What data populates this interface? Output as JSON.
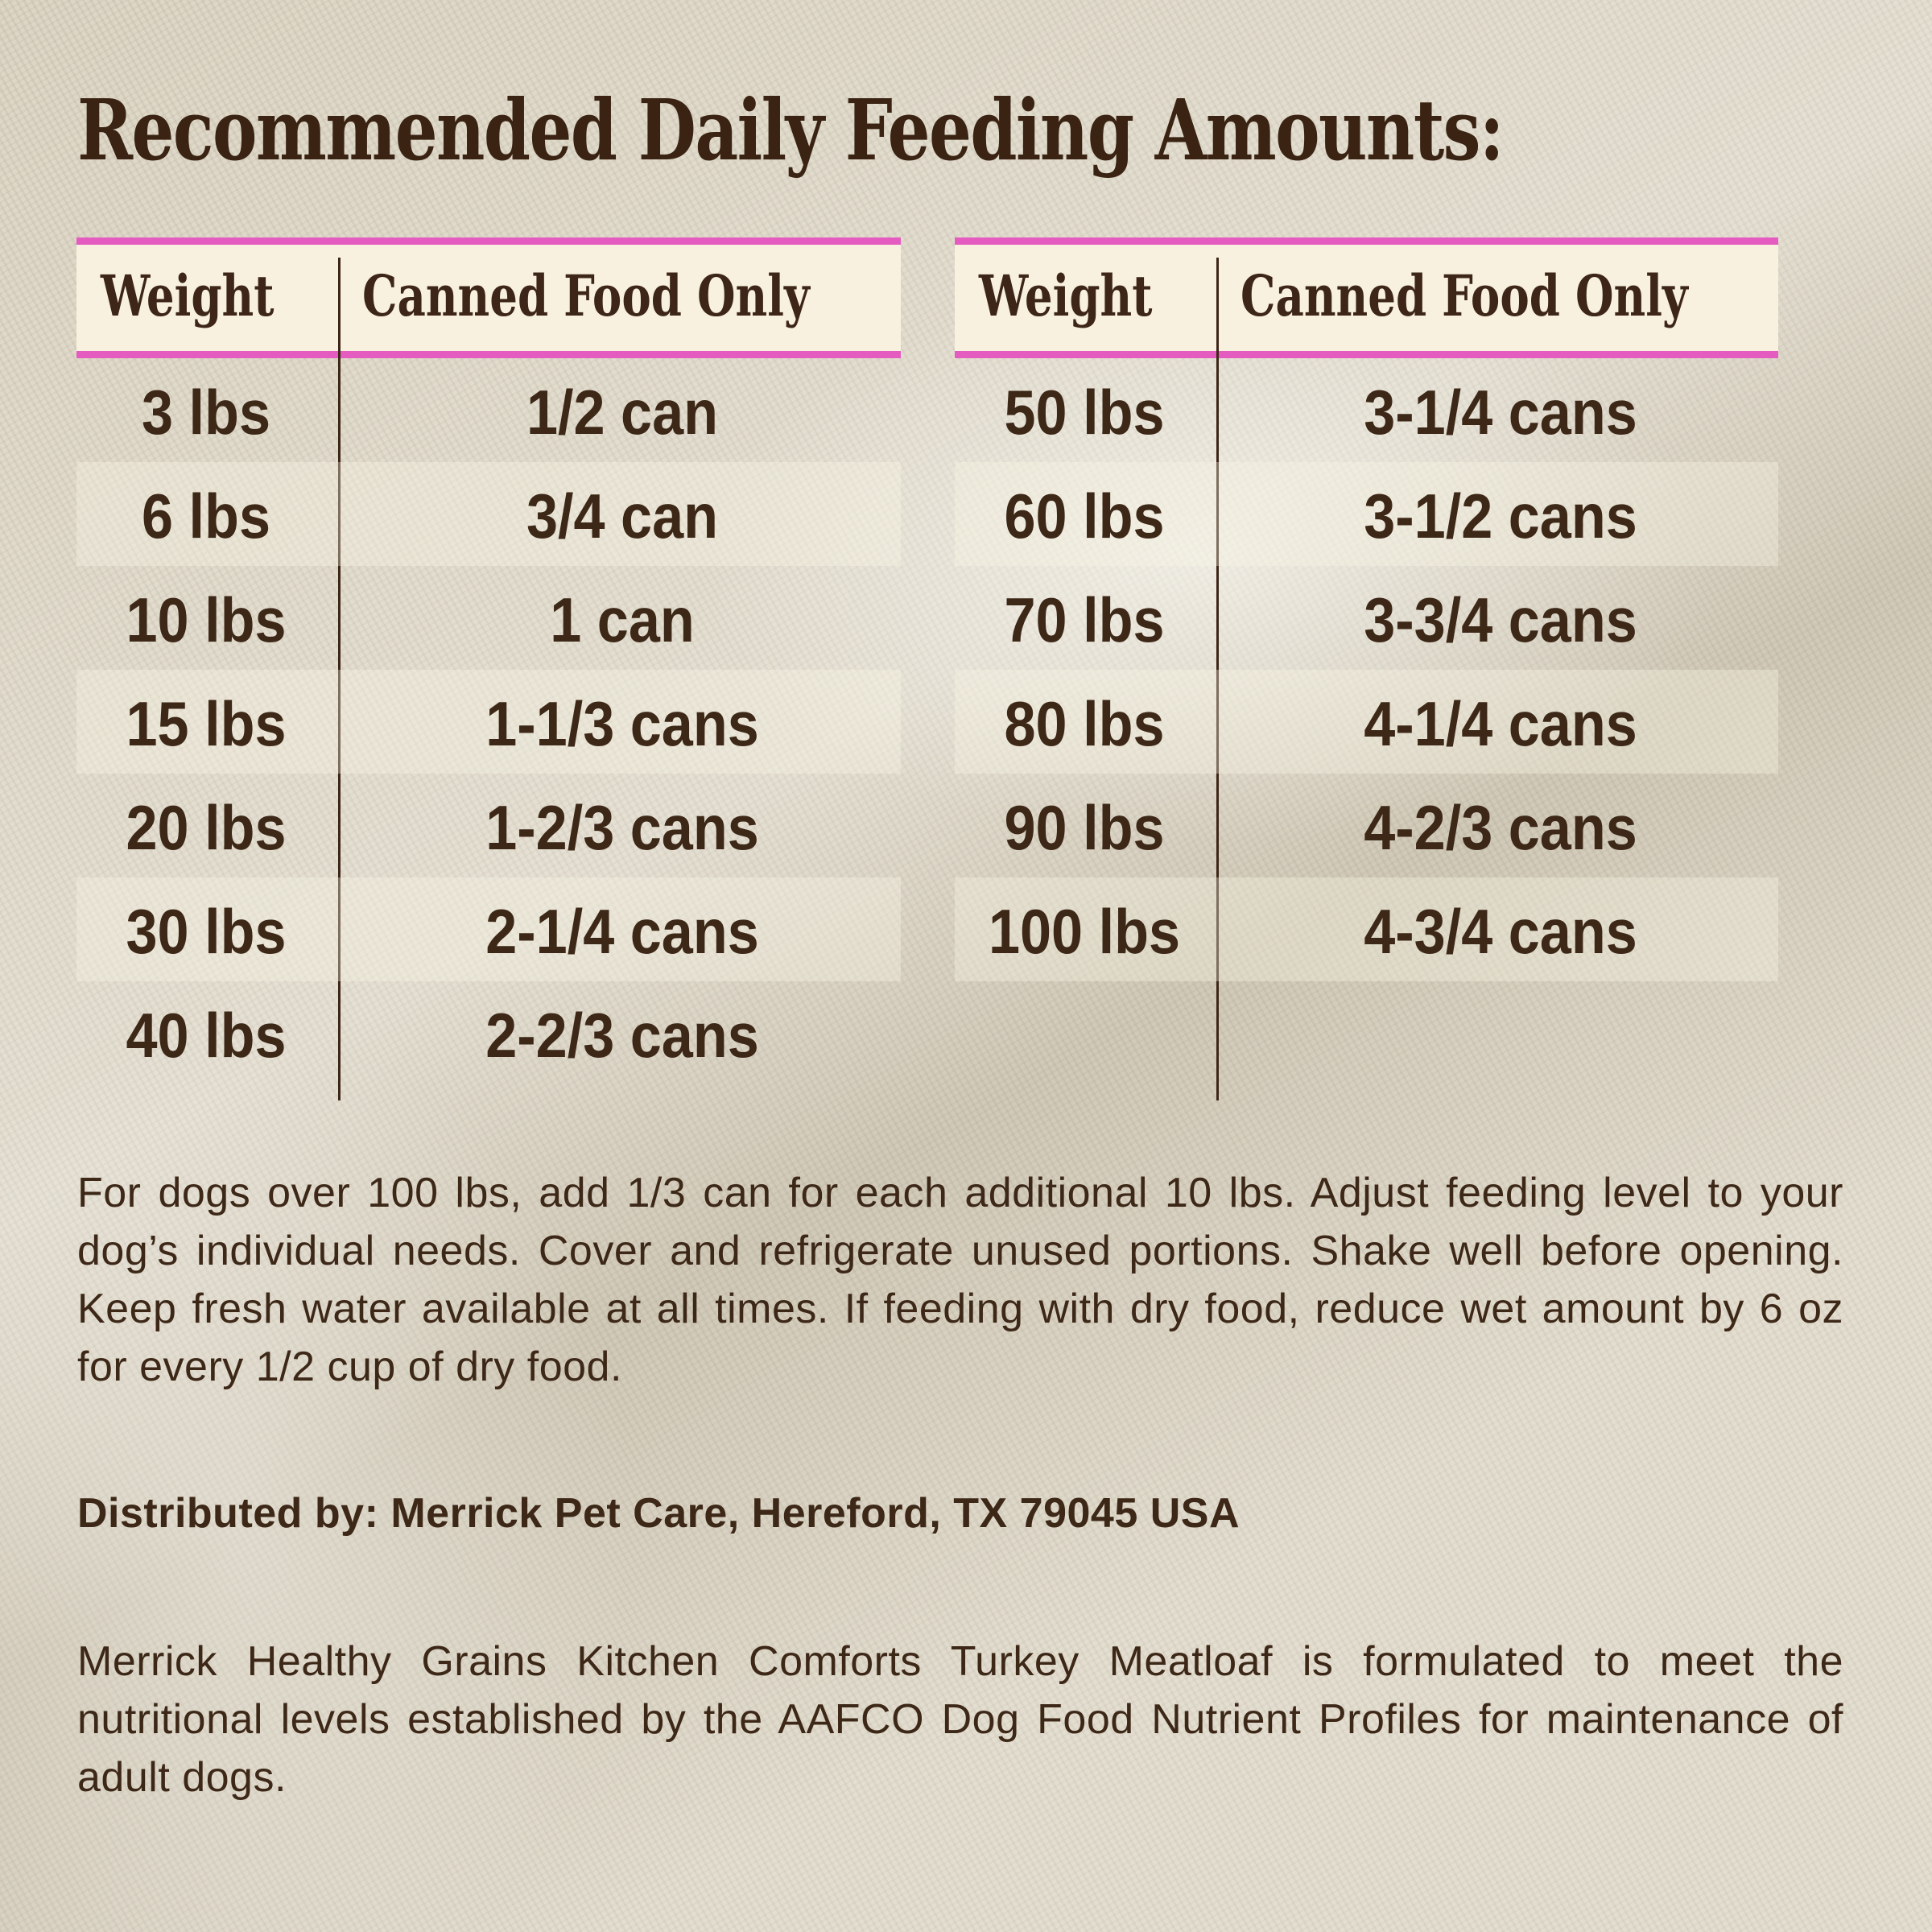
{
  "title": "Recommended Daily Feeding Amounts:",
  "colors": {
    "accent_pink": "#e55cc0",
    "text_brown": "#3d2818",
    "header_bg": "#f8f1df"
  },
  "tables": [
    {
      "headers": {
        "weight": "Weight",
        "amount": "Canned Food Only"
      },
      "rows": [
        {
          "weight": "3 lbs",
          "amount": "1/2 can"
        },
        {
          "weight": "6 lbs",
          "amount": "3/4 can"
        },
        {
          "weight": "10 lbs",
          "amount": "1 can"
        },
        {
          "weight": "15 lbs",
          "amount": "1-1/3 cans"
        },
        {
          "weight": "20 lbs",
          "amount": "1-2/3 cans"
        },
        {
          "weight": "30 lbs",
          "amount": "2-1/4 cans"
        },
        {
          "weight": "40 lbs",
          "amount": "2-2/3 cans"
        }
      ]
    },
    {
      "headers": {
        "weight": "Weight",
        "amount": "Canned Food Only"
      },
      "rows": [
        {
          "weight": "50 lbs",
          "amount": "3-1/4 cans"
        },
        {
          "weight": "60 lbs",
          "amount": "3-1/2 cans"
        },
        {
          "weight": "70 lbs",
          "amount": "3-3/4 cans"
        },
        {
          "weight": "80 lbs",
          "amount": "4-1/4 cans"
        },
        {
          "weight": "90 lbs",
          "amount": "4-2/3 cans"
        },
        {
          "weight": "100 lbs",
          "amount": "4-3/4 cans"
        }
      ]
    }
  ],
  "instructions": "For dogs over 100 lbs, add 1/3 can for each additional 10 lbs. Adjust feeding level to your dog’s individual needs. Cover and refrigerate unused portions. Shake well before opening. Keep fresh water available at all times. If feeding with dry food, reduce wet amount by 6 oz for every 1/2 cup of dry food.",
  "distributor": "Distributed by: Merrick Pet Care, Hereford, TX 79045 USA",
  "aafco_statement": "Merrick Healthy Grains Kitchen Comforts Turkey Meatloaf is formulated to meet the nutritional levels established by the AAFCO Dog Food Nutrient Profiles for maintenance of adult dogs."
}
